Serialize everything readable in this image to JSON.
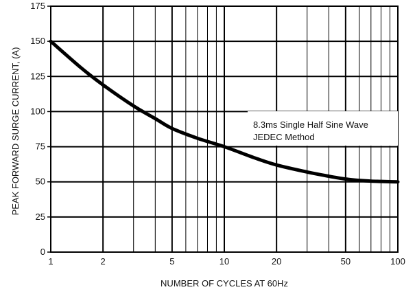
{
  "chart_data": {
    "type": "line",
    "xscale": "log",
    "xlim": [
      1,
      100
    ],
    "ylim": [
      0,
      175
    ],
    "xlabel": "NUMBER OF CYCLES AT 60Hz",
    "ylabel": "PEAK FORWARD SURGE CURRENT, (A)",
    "x_tick_labels": [
      "1",
      "2",
      "5",
      "10",
      "20",
      "50",
      "100"
    ],
    "x_tick_values": [
      1,
      2,
      5,
      10,
      20,
      50,
      100
    ],
    "y_tick_labels": [
      "0",
      "25",
      "50",
      "75",
      "100",
      "125",
      "150",
      "175"
    ],
    "y_tick_values": [
      0,
      25,
      50,
      75,
      100,
      125,
      150,
      175
    ],
    "x_minor_gridlines": [
      3,
      4,
      6,
      7,
      8,
      9,
      30,
      40,
      60,
      70,
      80,
      90
    ],
    "grid": true,
    "annotation": {
      "line1": "8.3ms Single Half Sine Wave",
      "line2": "JEDEC Method"
    },
    "series": [
      {
        "x": [
          1,
          1.5,
          2,
          3,
          4,
          5,
          7,
          10,
          15,
          20,
          30,
          40,
          50,
          60,
          70,
          80,
          90,
          100
        ],
        "y": [
          150,
          131,
          119,
          104,
          95,
          88,
          81,
          75,
          67,
          62,
          57,
          54,
          52,
          51,
          50.5,
          50.3,
          50.1,
          50
        ]
      }
    ]
  }
}
